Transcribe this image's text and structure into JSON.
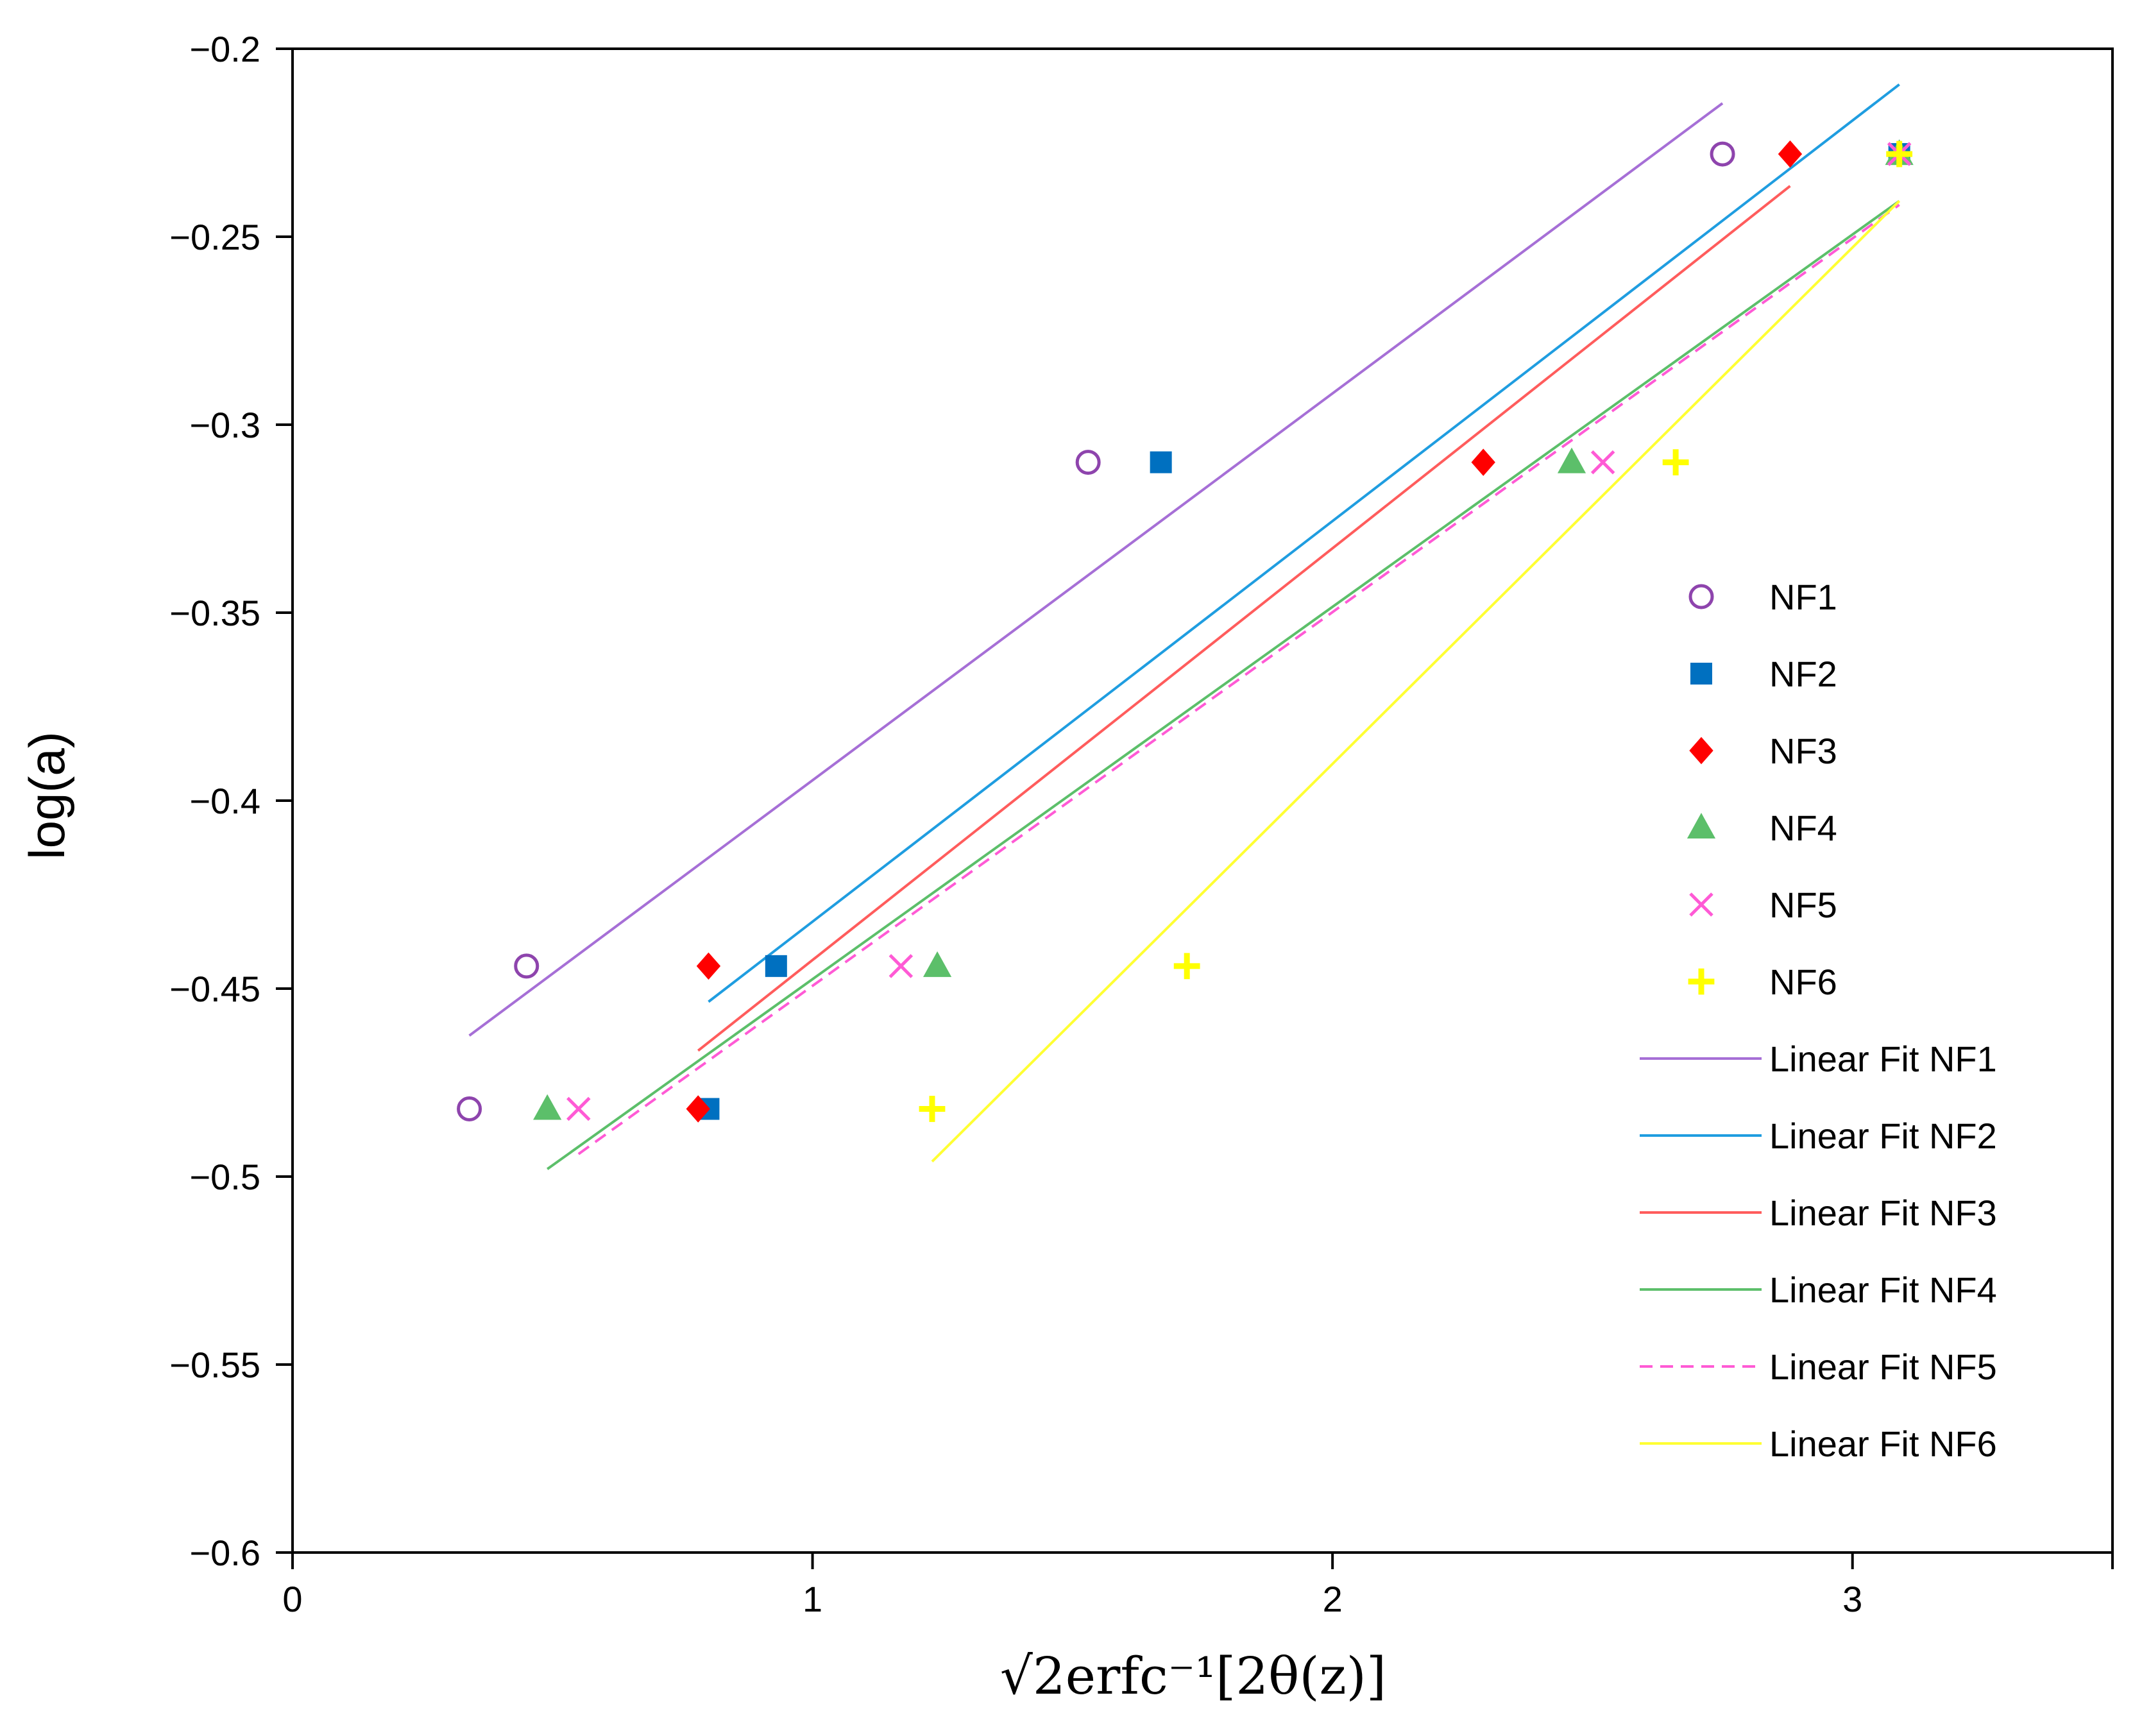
{
  "chart_data": {
    "type": "scatter",
    "title": "",
    "xlabel": "√2erfc⁻¹[2θ(z)]",
    "ylabel": "log(a)",
    "xlim": [
      0,
      3.5
    ],
    "ylim": [
      -0.6,
      -0.2
    ],
    "x_ticks": [
      0,
      1,
      2,
      3
    ],
    "x_tick_labels": [
      "0",
      "1",
      "2",
      "3"
    ],
    "y_ticks": [
      -0.2,
      -0.25,
      -0.3,
      -0.35,
      -0.4,
      -0.45,
      -0.5,
      -0.55,
      -0.6
    ],
    "y_tick_labels": [
      "−0.2",
      "−0.25",
      "−0.3",
      "−0.35",
      "−0.4",
      "−0.45",
      "−0.5",
      "−0.55",
      "−0.6"
    ],
    "grid": false,
    "legend_position": "right",
    "series": [
      {
        "name": "NF1",
        "marker": "circle-open",
        "color": "#8e44ad",
        "x": [
          0.34,
          0.45,
          1.53,
          2.75
        ],
        "y": [
          -0.482,
          -0.444,
          -0.31,
          -0.228
        ]
      },
      {
        "name": "NF2",
        "marker": "square",
        "color": "#0070c0",
        "x": [
          0.8,
          0.93,
          1.67,
          3.09
        ],
        "y": [
          -0.482,
          -0.444,
          -0.31,
          -0.228
        ]
      },
      {
        "name": "NF3",
        "marker": "diamond",
        "color": "#ff0000",
        "x": [
          0.78,
          0.8,
          2.29,
          2.88
        ],
        "y": [
          -0.482,
          -0.444,
          -0.31,
          -0.228
        ]
      },
      {
        "name": "NF4",
        "marker": "triangle",
        "color": "#5cbf6a",
        "x": [
          0.49,
          1.24,
          2.46,
          3.09
        ],
        "y": [
          -0.482,
          -0.444,
          -0.31,
          -0.228
        ]
      },
      {
        "name": "NF5",
        "marker": "x",
        "color": "#ff5ad5",
        "x": [
          0.55,
          1.17,
          2.52,
          3.09
        ],
        "y": [
          -0.482,
          -0.444,
          -0.31,
          -0.228
        ]
      },
      {
        "name": "NF6",
        "marker": "plus",
        "color": "#ffff00",
        "x": [
          1.23,
          1.72,
          2.66,
          3.09
        ],
        "y": [
          -0.482,
          -0.444,
          -0.31,
          -0.228
        ]
      }
    ],
    "fits": [
      {
        "name": "Linear Fit NF1",
        "color": "#a66fd6",
        "dash": "solid",
        "x": [
          0.34,
          2.75
        ],
        "y": [
          -0.4625,
          -0.2145
        ]
      },
      {
        "name": "Linear Fit NF2",
        "color": "#1f9de0",
        "dash": "solid",
        "x": [
          0.8,
          3.09
        ],
        "y": [
          -0.4535,
          -0.2095
        ]
      },
      {
        "name": "Linear Fit NF3",
        "color": "#ff5c5c",
        "dash": "solid",
        "x": [
          0.78,
          2.88
        ],
        "y": [
          -0.4665,
          -0.2365
        ]
      },
      {
        "name": "Linear Fit NF4",
        "color": "#5cbf6a",
        "dash": "solid",
        "x": [
          0.49,
          3.09
        ],
        "y": [
          -0.498,
          -0.2405
        ]
      },
      {
        "name": "Linear Fit NF5",
        "color": "#ff5ad5",
        "dash": "dashed",
        "x": [
          0.55,
          3.09
        ],
        "y": [
          -0.494,
          -0.2415
        ]
      },
      {
        "name": "Linear Fit NF6",
        "color": "#ffff33",
        "dash": "solid",
        "x": [
          1.23,
          3.09
        ],
        "y": [
          -0.496,
          -0.2405
        ]
      }
    ]
  }
}
